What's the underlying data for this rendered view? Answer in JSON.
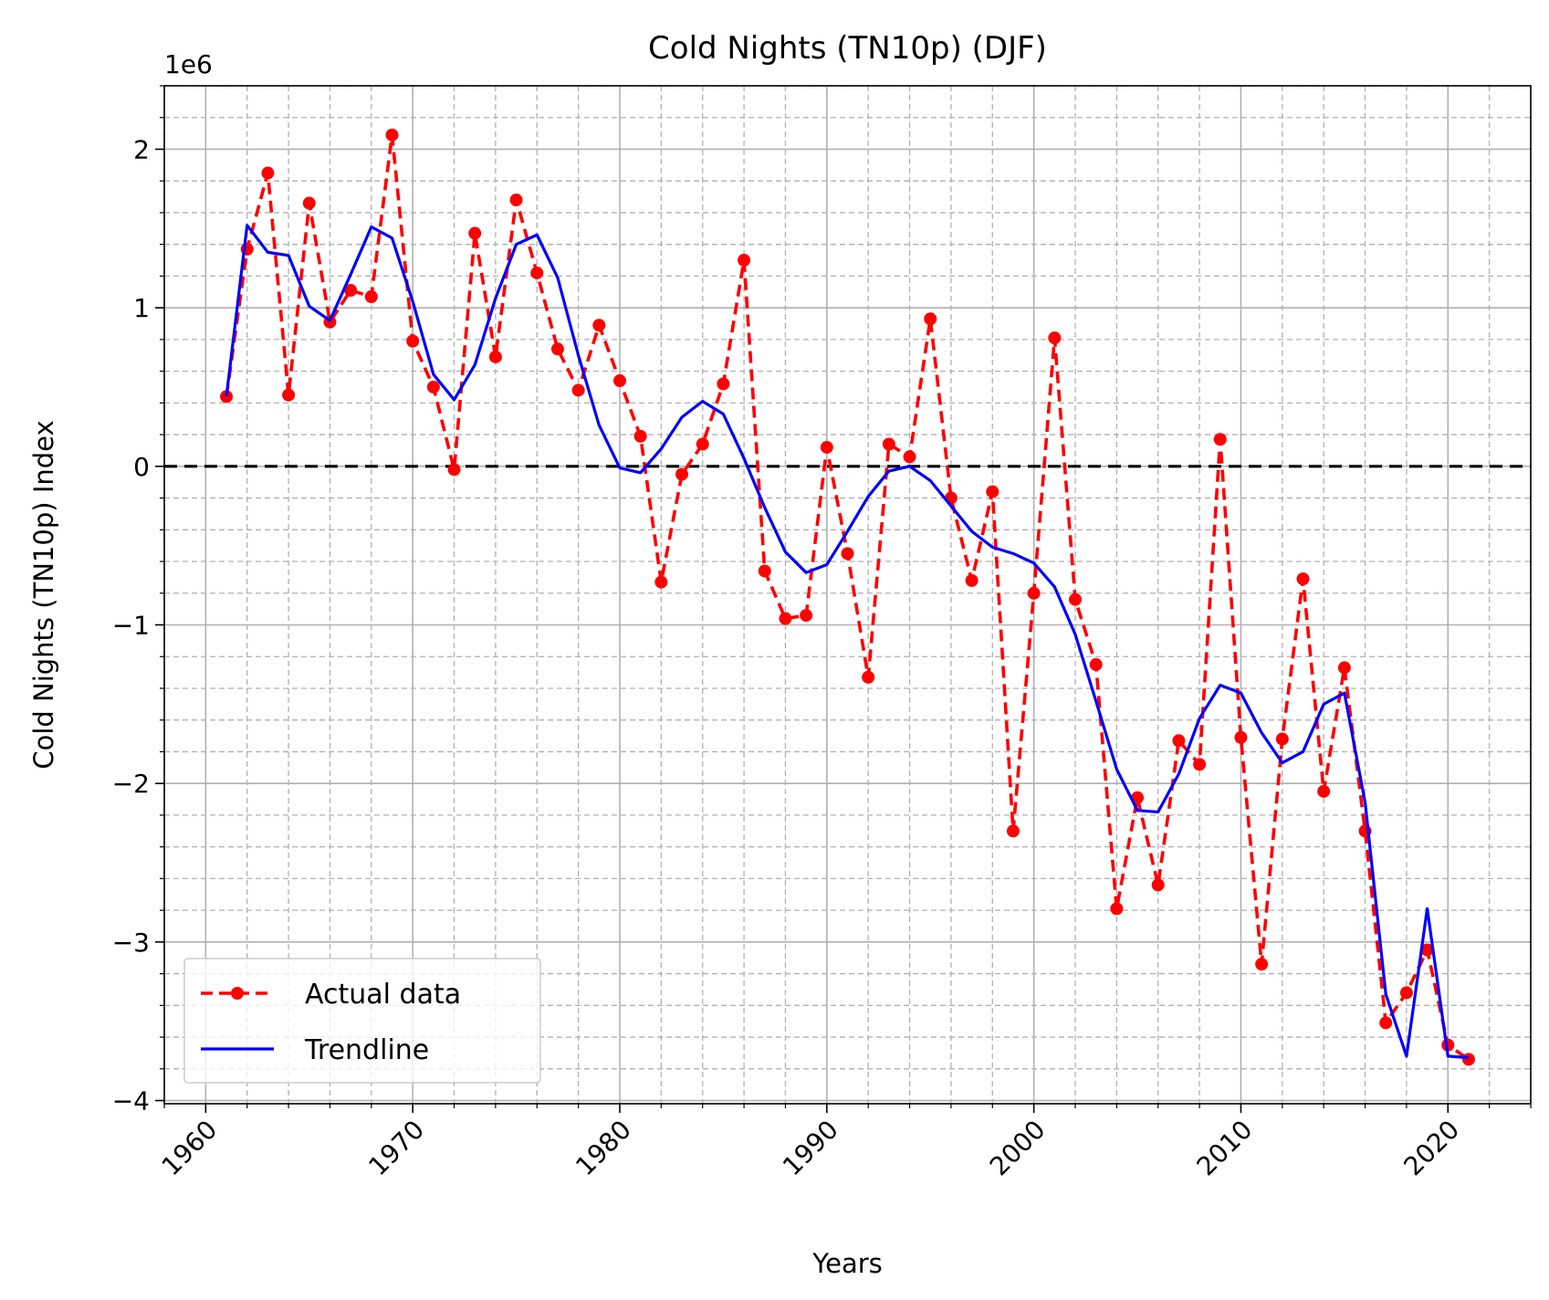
{
  "chart_data": {
    "type": "line",
    "title": "Cold Nights (TN10p) (DJF)",
    "xlabel": "Years",
    "ylabel": "Cold Nights (TN10p) Index",
    "y_offset_label": "1e6",
    "xlim": [
      1958,
      2024
    ],
    "ylim": [
      -4.02,
      2.4
    ],
    "y_scale_factor": 1000000,
    "x_ticks": [
      1960,
      1970,
      1980,
      1990,
      2000,
      2010,
      2020
    ],
    "x_tick_labels": [
      "1960",
      "1970",
      "1980",
      "1990",
      "2000",
      "2010",
      "2020"
    ],
    "y_ticks": [
      -4,
      -3,
      -2,
      -1,
      0,
      1,
      2
    ],
    "y_tick_labels": [
      "−4",
      "−3",
      "−2",
      "−1",
      "0",
      "1",
      "2"
    ],
    "grid": "major and minor",
    "reference_line": 0,
    "legend_position": "lower-left",
    "series": [
      {
        "name": "Actual data",
        "style": "dashed-with-markers",
        "color": "#ff0000",
        "x": [
          1961,
          1962,
          1963,
          1964,
          1965,
          1966,
          1967,
          1968,
          1969,
          1970,
          1971,
          1972,
          1973,
          1974,
          1975,
          1976,
          1977,
          1978,
          1979,
          1980,
          1981,
          1982,
          1983,
          1984,
          1985,
          1986,
          1987,
          1988,
          1989,
          1990,
          1991,
          1992,
          1993,
          1994,
          1995,
          1996,
          1997,
          1998,
          1999,
          2000,
          2001,
          2002,
          2003,
          2004,
          2005,
          2006,
          2007,
          2008,
          2009,
          2010,
          2011,
          2012,
          2013,
          2014,
          2015,
          2016,
          2017,
          2018,
          2019,
          2020,
          2021
        ],
        "values": [
          0.44,
          1.37,
          1.85,
          0.45,
          1.66,
          0.91,
          1.11,
          1.07,
          2.09,
          0.79,
          0.5,
          -0.02,
          1.47,
          0.69,
          1.68,
          1.22,
          0.74,
          0.48,
          0.89,
          0.54,
          0.19,
          -0.73,
          -0.05,
          0.14,
          0.52,
          1.3,
          -0.66,
          -0.96,
          -0.94,
          0.12,
          -0.55,
          -1.33,
          0.14,
          0.06,
          0.93,
          -0.2,
          -0.72,
          -0.16,
          -2.3,
          -0.8,
          0.81,
          -0.84,
          -1.25,
          -2.79,
          -2.09,
          -2.64,
          -1.73,
          -1.88,
          0.17,
          -1.71,
          -3.14,
          -1.72,
          -0.71,
          -2.05,
          -1.27,
          -2.3,
          -3.51,
          -3.32,
          -3.05,
          -3.65,
          -3.74
        ]
      },
      {
        "name": "Trendline",
        "style": "solid",
        "color": "#0000ff",
        "x": [
          1961,
          1962,
          1963,
          1964,
          1965,
          1966,
          1967,
          1968,
          1969,
          1970,
          1971,
          1972,
          1973,
          1974,
          1975,
          1976,
          1977,
          1978,
          1979,
          1980,
          1981,
          1982,
          1983,
          1984,
          1985,
          1986,
          1987,
          1988,
          1989,
          1990,
          1991,
          1992,
          1993,
          1994,
          1995,
          1996,
          1997,
          1998,
          1999,
          2000,
          2001,
          2002,
          2003,
          2004,
          2005,
          2006,
          2007,
          2008,
          2009,
          2010,
          2011,
          2012,
          2013,
          2014,
          2015,
          2016,
          2017,
          2018,
          2019,
          2020,
          2021
        ],
        "values": [
          0.44,
          1.52,
          1.35,
          1.33,
          1.01,
          0.92,
          1.21,
          1.51,
          1.44,
          1.04,
          0.58,
          0.42,
          0.64,
          1.06,
          1.4,
          1.46,
          1.19,
          0.7,
          0.26,
          -0.01,
          -0.04,
          0.11,
          0.31,
          0.41,
          0.33,
          0.05,
          -0.26,
          -0.54,
          -0.67,
          -0.62,
          -0.41,
          -0.19,
          -0.03,
          0.0,
          -0.09,
          -0.25,
          -0.41,
          -0.51,
          -0.55,
          -0.61,
          -0.76,
          -1.06,
          -1.48,
          -1.91,
          -2.17,
          -2.18,
          -1.94,
          -1.59,
          -1.38,
          -1.43,
          -1.68,
          -1.87,
          -1.8,
          -1.5,
          -1.43,
          -2.12,
          -3.33,
          -3.72,
          -2.79,
          -3.72,
          -3.73
        ]
      }
    ]
  }
}
